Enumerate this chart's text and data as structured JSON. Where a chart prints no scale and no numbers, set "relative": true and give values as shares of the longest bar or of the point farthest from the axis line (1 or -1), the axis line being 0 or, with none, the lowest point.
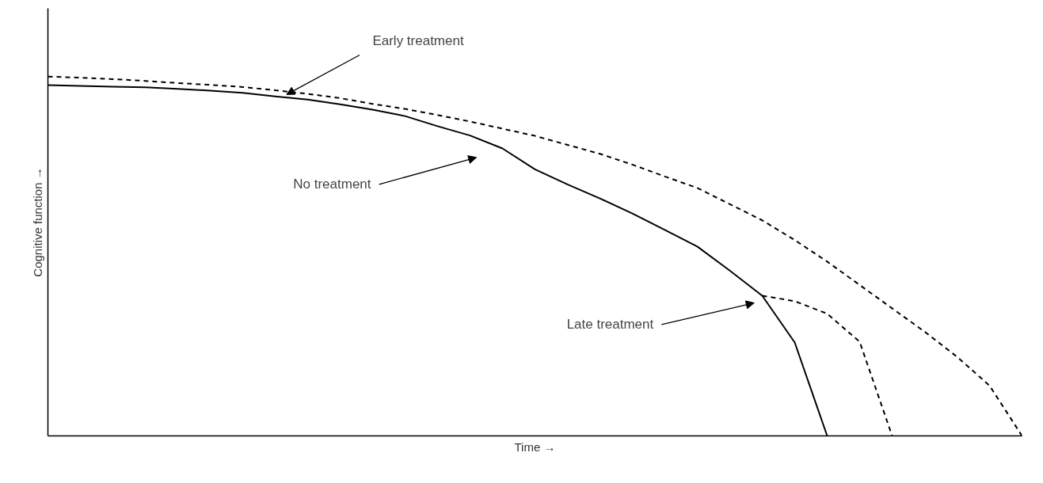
{
  "chart_data": {
    "type": "line",
    "relative": true,
    "xlabel": "Time →",
    "ylabel": "Cognitive function →",
    "categories": [
      null,
      null,
      null,
      null,
      null,
      null,
      null,
      null,
      null,
      null,
      null,
      null,
      null,
      null,
      null,
      null,
      null,
      null,
      null,
      null,
      null,
      null,
      null,
      null,
      null,
      null,
      null,
      null,
      null,
      null,
      null
    ],
    "series": [
      {
        "color": "#000000",
        "line_style": "solid",
        "values": [
          0.976,
          0.974,
          0.972,
          0.97,
          0.966,
          0.961,
          0.955,
          0.945,
          0.936,
          0.923,
          0.908,
          0.89,
          0.862,
          0.836,
          0.8,
          0.742,
          0.7,
          0.661,
          0.619,
          0.573,
          0.527,
          0.46,
          0.39,
          0.26,
          0,
          null,
          null,
          null,
          null,
          null,
          null
        ]
      },
      {
        "color": "#000000",
        "line_style": "dashed",
        "values": [
          1.0,
          0.997,
          0.993,
          0.988,
          0.982,
          0.977,
          0.971,
          0.962,
          0.952,
          0.94,
          0.924,
          0.91,
          0.893,
          0.875,
          0.855,
          0.835,
          0.81,
          0.785,
          0.755,
          0.722,
          0.69,
          0.645,
          0.6,
          0.545,
          0.485,
          0.42,
          0.355,
          0.29,
          0.22,
          0.14,
          0
        ]
      },
      {
        "color": "#000000",
        "line_style": "dashed",
        "values": [
          null,
          null,
          null,
          null,
          null,
          null,
          null,
          null,
          null,
          null,
          null,
          null,
          null,
          null,
          null,
          null,
          null,
          null,
          null,
          null,
          null,
          null,
          0.39,
          0.375,
          0.34,
          0.262,
          0,
          null,
          null,
          null,
          null
        ]
      }
    ],
    "annotations": [
      "Early treatment",
      "No treatment",
      "Late treatment"
    ]
  }
}
